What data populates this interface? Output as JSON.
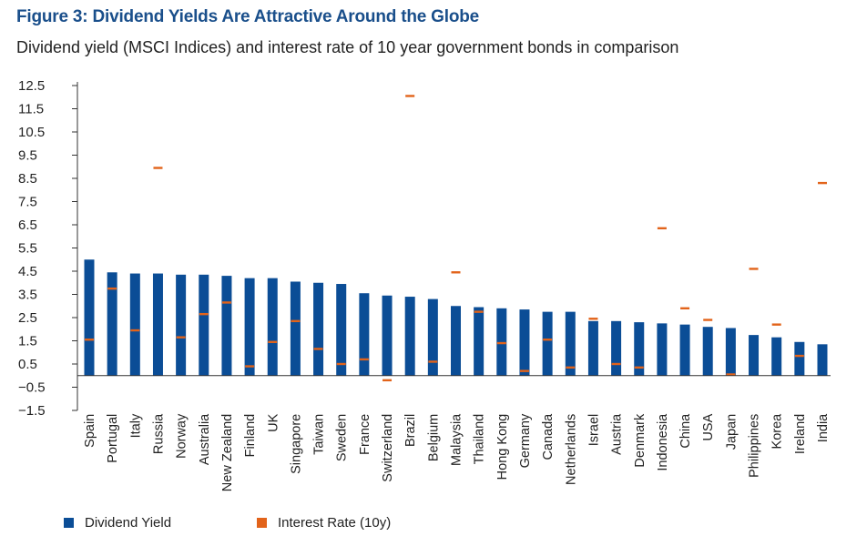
{
  "title": "Figure 3: Dividend Yields Are Attractive Around the Globe",
  "subtitle": "Dividend yield (MSCI Indices) and interest rate of 10 year government bonds in comparison",
  "colors": {
    "dividend": "#0b4d96",
    "interest": "#e2631a",
    "title": "#1a4f8b"
  },
  "chart_data": {
    "type": "bar",
    "title": "Figure 3: Dividend Yields Are Attractive Around the Globe",
    "subtitle": "Dividend yield (MSCI Indices) and interest rate of 10 year government bonds in comparison",
    "xlabel": "",
    "ylabel": "",
    "ylim": [
      -1.5,
      12.5
    ],
    "yticks": [
      12.5,
      11.5,
      10.5,
      9.5,
      8.5,
      7.5,
      6.5,
      5.5,
      4.5,
      3.5,
      2.5,
      1.5,
      0.5,
      -0.5,
      -1.5
    ],
    "ytick_labels": [
      "12.5",
      "11.5",
      "10.5",
      "9.5",
      "8.5",
      "7.5",
      "6.5",
      "5.5",
      "4.5",
      "3.5",
      "2.5",
      "1.5",
      "0.5",
      "−0.5",
      "−1.5"
    ],
    "grid": false,
    "legend_position": "bottom",
    "categories": [
      "Spain",
      "Portugal",
      "Italy",
      "Russia",
      "Norway",
      "Australia",
      "New Zealand",
      "Finland",
      "UK",
      "Singapore",
      "Taiwan",
      "Sweden",
      "France",
      "Switzerland",
      "Brazil",
      "Belgium",
      "Malaysia",
      "Thailand",
      "Hong Kong",
      "Germany",
      "Canada",
      "Netherlands",
      "Israel",
      "Austria",
      "Denmark",
      "Indonesia",
      "China",
      "USA",
      "Japan",
      "Philippines",
      "Korea",
      "Ireland",
      "India"
    ],
    "series": [
      {
        "name": "Dividend Yield",
        "style": "bar",
        "values": [
          5.0,
          4.45,
          4.4,
          4.4,
          4.35,
          4.35,
          4.3,
          4.2,
          4.2,
          4.05,
          4.0,
          3.95,
          3.55,
          3.45,
          3.4,
          3.3,
          3.0,
          2.95,
          2.9,
          2.85,
          2.75,
          2.75,
          2.35,
          2.35,
          2.3,
          2.25,
          2.2,
          2.1,
          2.05,
          1.75,
          1.65,
          1.45,
          1.35
        ]
      },
      {
        "name": "Interest Rate (10y)",
        "style": "marker",
        "values": [
          1.55,
          3.75,
          1.95,
          8.95,
          1.65,
          2.65,
          3.15,
          0.4,
          1.45,
          2.35,
          1.15,
          0.5,
          0.7,
          -0.2,
          12.05,
          0.6,
          4.45,
          2.75,
          1.4,
          0.2,
          1.55,
          0.35,
          2.45,
          0.5,
          0.35,
          6.35,
          2.9,
          2.4,
          0.05,
          4.6,
          2.2,
          0.85,
          8.3
        ]
      }
    ]
  },
  "legend": [
    {
      "label": "Dividend Yield",
      "series": 0
    },
    {
      "label": "Interest Rate (10y)",
      "series": 1
    }
  ]
}
